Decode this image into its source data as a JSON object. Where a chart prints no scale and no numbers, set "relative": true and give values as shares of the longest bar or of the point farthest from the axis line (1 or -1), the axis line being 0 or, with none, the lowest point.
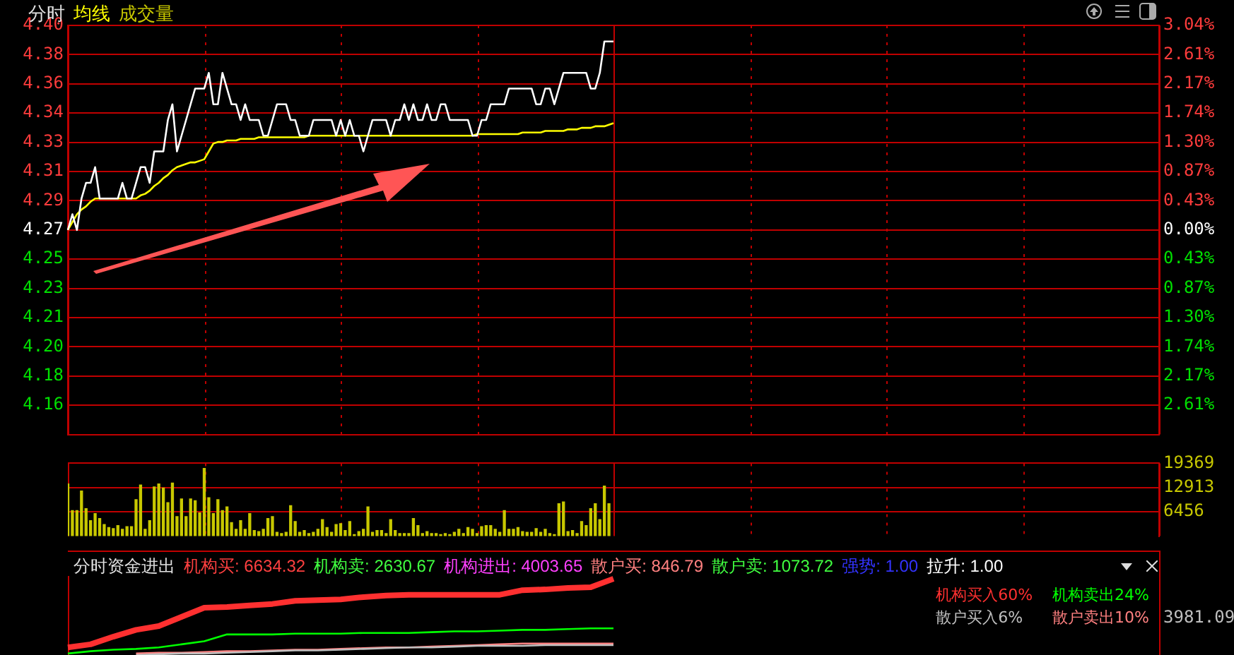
{
  "chart_data": [
    {
      "type": "line",
      "title": "分时",
      "marker": "none",
      "grid": true,
      "categories": [
        null,
        null,
        null,
        null,
        null,
        null,
        null,
        null,
        null,
        null,
        null,
        null,
        null,
        null,
        null,
        null,
        null,
        null,
        null,
        null,
        null,
        null,
        null,
        null,
        null,
        null,
        null,
        null,
        null,
        null,
        null,
        null,
        null,
        null,
        null,
        null,
        null,
        null,
        null,
        null,
        null,
        null,
        null,
        null,
        null,
        null,
        null,
        null,
        null,
        null,
        null,
        null,
        null,
        null,
        null,
        null,
        null,
        null,
        null,
        null,
        null,
        null,
        null,
        null,
        null,
        null,
        null,
        null,
        null,
        null,
        null,
        null,
        null,
        null,
        null,
        null,
        null,
        null,
        null,
        null,
        null,
        null,
        null,
        null,
        null,
        null,
        null,
        null,
        null,
        null,
        null,
        null,
        null,
        null,
        null,
        null,
        null,
        null,
        null,
        null,
        null,
        null,
        null,
        null,
        null,
        null,
        null,
        null,
        null,
        null,
        null,
        null,
        null,
        null,
        null,
        null,
        null,
        null,
        null,
        null,
        null,
        null,
        null,
        null,
        null,
        null,
        null,
        null,
        null,
        null,
        null,
        null,
        null,
        null,
        null,
        null,
        null,
        null,
        null,
        null,
        null,
        null,
        null,
        null,
        null,
        null,
        null,
        null,
        null,
        null,
        null,
        null,
        null,
        null,
        null,
        null,
        null,
        null,
        null,
        null,
        null,
        null,
        null,
        null,
        null,
        null,
        null,
        null,
        null,
        null,
        null,
        null,
        null,
        null,
        null,
        null,
        null,
        null,
        null,
        null,
        null,
        null,
        null,
        null,
        null,
        null,
        null,
        null,
        null,
        null,
        null,
        null,
        null,
        null,
        null,
        null,
        null,
        null,
        null,
        null,
        null,
        null,
        null,
        null,
        null,
        null,
        null,
        null,
        null,
        null,
        null,
        null,
        null,
        null,
        null,
        null,
        null,
        null,
        null,
        null,
        null,
        null,
        null,
        null,
        null,
        null,
        null,
        null,
        null,
        null,
        null,
        null,
        null,
        null,
        null,
        null,
        null,
        null,
        null,
        null,
        null
      ],
      "ylim": [
        4.1398,
        4.4002
      ],
      "yticks": [
        {
          "value": 4.1398,
          "label": null
        },
        {
          "value": 4.1584,
          "label": "4.16"
        },
        {
          "value": 4.177,
          "label": "4.18"
        },
        {
          "value": 4.1956,
          "label": "4.20"
        },
        {
          "value": 4.2142,
          "label": "4.21"
        },
        {
          "value": 4.2328,
          "label": "4.23"
        },
        {
          "value": 4.2514,
          "label": "4.25"
        },
        {
          "value": 4.27,
          "label": "4.27"
        },
        {
          "value": 4.2886,
          "label": "4.29"
        },
        {
          "value": 4.3072,
          "label": "4.31"
        },
        {
          "value": 4.3258,
          "label": "4.33"
        },
        {
          "value": 4.3444,
          "label": "4.34"
        },
        {
          "value": 4.363,
          "label": "4.36"
        },
        {
          "value": 4.3816,
          "label": "4.38"
        },
        {
          "value": 4.4002,
          "label": "4.40"
        }
      ],
      "y2lim": [
        -3.0435,
        3.0435
      ],
      "y2ticks": [
        {
          "value": -2.6087,
          "label": "2.61%"
        },
        {
          "value": -2.1739,
          "label": "2.17%"
        },
        {
          "value": -1.7391,
          "label": "1.74%"
        },
        {
          "value": -1.3043,
          "label": "1.30%"
        },
        {
          "value": -0.8696,
          "label": "0.87%"
        },
        {
          "value": -0.4348,
          "label": "0.43%"
        },
        {
          "value": 0,
          "label": "0.00%"
        },
        {
          "value": 0.4348,
          "label": "0.43%"
        },
        {
          "value": 0.8696,
          "label": "0.87%"
        },
        {
          "value": 1.3043,
          "label": "1.30%"
        },
        {
          "value": 1.7391,
          "label": "1.74%"
        },
        {
          "value": 2.1739,
          "label": "2.17%"
        },
        {
          "value": 2.6087,
          "label": "2.61%"
        },
        {
          "value": 3.0435,
          "label": "3.04%"
        }
      ],
      "series": [
        {
          "color": "#ffffff",
          "values": [
            4.27,
            4.28,
            4.27,
            4.29,
            4.3,
            4.3,
            4.31,
            4.29,
            4.29,
            4.29,
            4.29,
            4.29,
            4.3,
            4.29,
            4.29,
            4.3,
            4.31,
            4.31,
            4.3,
            4.32,
            4.32,
            4.32,
            4.34,
            4.35,
            4.32,
            4.33,
            4.34,
            4.35,
            4.36,
            4.36,
            4.36,
            4.37,
            4.35,
            4.35,
            4.37,
            4.36,
            4.35,
            4.35,
            4.34,
            4.35,
            4.34,
            4.34,
            4.34,
            4.33,
            4.33,
            4.34,
            4.35,
            4.35,
            4.35,
            4.34,
            4.34,
            4.33,
            4.33,
            4.33,
            4.34,
            4.34,
            4.34,
            4.34,
            4.34,
            4.33,
            4.34,
            4.33,
            4.34,
            4.33,
            4.33,
            4.32,
            4.33,
            4.34,
            4.34,
            4.34,
            4.34,
            4.33,
            4.34,
            4.34,
            4.35,
            4.34,
            4.35,
            4.34,
            4.34,
            4.35,
            4.34,
            4.34,
            4.35,
            4.35,
            4.34,
            4.34,
            4.34,
            4.34,
            4.34,
            4.33,
            4.33,
            4.34,
            4.34,
            4.35,
            4.35,
            4.35,
            4.35,
            4.36,
            4.36,
            4.36,
            4.36,
            4.36,
            4.36,
            4.35,
            4.35,
            4.36,
            4.36,
            4.35,
            4.36,
            4.37,
            4.37,
            4.37,
            4.37,
            4.37,
            4.37,
            4.36,
            4.36,
            4.37,
            4.39,
            4.39,
            4.39,
            null,
            null,
            null,
            null,
            null,
            null,
            null,
            null,
            null,
            null,
            null,
            null,
            null,
            null,
            null,
            null,
            null,
            null,
            null,
            null,
            null,
            null,
            null,
            null,
            null,
            null,
            null,
            null,
            null,
            null,
            null,
            null,
            null,
            null,
            null,
            null,
            null,
            null,
            null,
            null,
            null,
            null,
            null,
            null,
            null,
            null,
            null,
            null,
            null,
            null,
            null,
            null,
            null,
            null,
            null,
            null,
            null,
            null,
            null,
            null,
            null,
            null,
            null,
            null,
            null,
            null,
            null,
            null,
            null,
            null,
            null,
            null,
            null,
            null,
            null,
            null,
            null,
            null,
            null,
            null,
            null,
            null,
            null,
            null,
            null,
            null,
            null,
            null,
            null,
            null,
            null,
            null,
            null,
            null,
            null,
            null,
            null,
            null,
            null,
            null,
            null,
            null,
            null,
            null,
            null,
            null,
            null,
            null,
            null,
            null,
            null,
            null,
            null,
            null,
            null,
            null,
            null,
            null,
            null,
            null
          ]
        },
        {
          "name": "均线",
          "color": "#ffff00",
          "values": [
            4.27,
            4.275,
            4.28,
            4.283,
            4.285,
            4.288,
            4.29,
            4.29,
            4.29,
            4.29,
            4.29,
            4.29,
            4.29,
            4.29,
            4.29,
            4.29,
            4.292,
            4.293,
            4.295,
            4.298,
            4.3,
            4.303,
            4.305,
            4.308,
            4.31,
            4.311,
            4.312,
            4.313,
            4.313,
            4.314,
            4.315,
            4.32,
            4.325,
            4.326,
            4.326,
            4.327,
            4.327,
            4.327,
            4.328,
            4.328,
            4.328,
            4.328,
            4.329,
            4.329,
            4.329,
            4.329,
            4.329,
            4.329,
            4.329,
            4.329,
            4.329,
            4.329,
            4.329,
            4.33,
            4.33,
            4.33,
            4.33,
            4.33,
            4.33,
            4.33,
            4.33,
            4.33,
            4.33,
            4.33,
            4.33,
            4.33,
            4.33,
            4.33,
            4.33,
            4.33,
            4.33,
            4.33,
            4.33,
            4.33,
            4.33,
            4.33,
            4.33,
            4.33,
            4.33,
            4.33,
            4.33,
            4.33,
            4.33,
            4.33,
            4.33,
            4.33,
            4.33,
            4.33,
            4.33,
            4.33,
            4.331,
            4.331,
            4.331,
            4.331,
            4.331,
            4.331,
            4.331,
            4.331,
            4.331,
            4.331,
            4.332,
            4.332,
            4.332,
            4.332,
            4.332,
            4.333,
            4.333,
            4.333,
            4.333,
            4.333,
            4.334,
            4.334,
            4.334,
            4.335,
            4.335,
            4.335,
            4.336,
            4.336,
            4.336,
            4.337,
            4.338,
            null,
            null,
            null,
            null,
            null,
            null,
            null,
            null,
            null,
            null,
            null,
            null,
            null,
            null,
            null,
            null,
            null,
            null,
            null,
            null,
            null,
            null,
            null,
            null,
            null,
            null,
            null,
            null,
            null,
            null,
            null,
            null,
            null,
            null,
            null,
            null,
            null,
            null,
            null,
            null,
            null,
            null,
            null,
            null,
            null,
            null,
            null,
            null,
            null,
            null,
            null,
            null,
            null,
            null,
            null,
            null,
            null,
            null,
            null,
            null,
            null,
            null,
            null,
            null,
            null,
            null,
            null,
            null,
            null,
            null,
            null,
            null,
            null,
            null,
            null,
            null,
            null,
            null,
            null,
            null,
            null,
            null,
            null,
            null,
            null,
            null,
            null,
            null,
            null,
            null,
            null,
            null,
            null,
            null,
            null,
            null,
            null,
            null,
            null,
            null,
            null,
            null,
            null,
            null,
            null,
            null,
            null,
            null,
            null,
            null,
            null,
            null,
            null,
            null,
            null,
            null,
            null,
            null,
            null,
            null
          ]
        }
      ]
    },
    {
      "type": "bar",
      "grid": true,
      "categories": [
        null,
        null,
        null,
        null,
        null,
        null,
        null,
        null,
        null,
        null,
        null,
        null,
        null,
        null,
        null,
        null,
        null,
        null,
        null,
        null,
        null,
        null,
        null,
        null,
        null,
        null,
        null,
        null,
        null,
        null,
        null,
        null,
        null,
        null,
        null,
        null,
        null,
        null,
        null,
        null,
        null,
        null,
        null,
        null,
        null,
        null,
        null,
        null,
        null,
        null,
        null,
        null,
        null,
        null,
        null,
        null,
        null,
        null,
        null,
        null,
        null,
        null,
        null,
        null,
        null,
        null,
        null,
        null,
        null,
        null,
        null,
        null,
        null,
        null,
        null,
        null,
        null,
        null,
        null,
        null,
        null,
        null,
        null,
        null,
        null,
        null,
        null,
        null,
        null,
        null,
        null,
        null,
        null,
        null,
        null,
        null,
        null,
        null,
        null,
        null,
        null,
        null,
        null,
        null,
        null,
        null,
        null,
        null,
        null,
        null,
        null,
        null,
        null,
        null,
        null,
        null,
        null,
        null,
        null,
        null,
        null,
        null,
        null,
        null,
        null,
        null,
        null,
        null,
        null,
        null,
        null,
        null,
        null,
        null,
        null,
        null,
        null,
        null,
        null,
        null,
        null,
        null,
        null,
        null,
        null,
        null,
        null,
        null,
        null,
        null,
        null,
        null,
        null,
        null,
        null,
        null,
        null,
        null,
        null,
        null,
        null,
        null,
        null,
        null,
        null,
        null,
        null,
        null,
        null,
        null,
        null,
        null,
        null,
        null,
        null,
        null,
        null,
        null,
        null,
        null,
        null,
        null,
        null,
        null,
        null,
        null,
        null,
        null,
        null,
        null,
        null,
        null,
        null,
        null,
        null,
        null,
        null,
        null,
        null,
        null,
        null,
        null,
        null,
        null,
        null,
        null,
        null,
        null,
        null,
        null,
        null,
        null,
        null,
        null,
        null,
        null,
        null,
        null,
        null,
        null,
        null,
        null,
        null,
        null,
        null,
        null,
        null,
        null,
        null,
        null,
        null,
        null,
        null,
        null,
        null,
        null,
        null,
        null,
        null,
        null,
        null
      ],
      "ylim": [
        0,
        19369
      ],
      "yticks": [
        6456,
        12913,
        19369
      ],
      "series": [
        {
          "name": "成交量",
          "color": "#c8c800",
          "values": [
            13900,
            6800,
            6800,
            12000,
            7300,
            4100,
            6000,
            4700,
            3100,
            2300,
            2000,
            2800,
            1800,
            2500,
            2500,
            9700,
            13600,
            1800,
            4100,
            13100,
            13900,
            12800,
            8900,
            14100,
            5200,
            9900,
            5200,
            9900,
            9400,
            6200,
            18000,
            10200,
            6000,
            9700,
            6800,
            7800,
            3600,
            1800,
            4100,
            1800,
            6000,
            1500,
            1200,
            1800,
            4700,
            5200,
            1000,
            700,
            1000,
            8100,
            3900,
            1000,
            1500,
            700,
            1000,
            1800,
            4400,
            2300,
            1000,
            3100,
            3300,
            1500,
            3900,
            400,
            1200,
            1800,
            7800,
            1000,
            1500,
            1500,
            700,
            4400,
            1500,
            700,
            700,
            700,
            4700,
            2800,
            700,
            1200,
            700,
            700,
            400,
            700,
            400,
            1000,
            1800,
            700,
            2300,
            1800,
            700,
            2500,
            2800,
            2800,
            1800,
            1000,
            6800,
            1800,
            1800,
            2300,
            1200,
            1000,
            1000,
            2000,
            1000,
            1800,
            700,
            400,
            8600,
            9100,
            1200,
            1500,
            700,
            3900,
            2800,
            7300,
            8600,
            4400,
            13300,
            8600,
            null,
            null,
            null,
            null,
            null,
            null,
            null,
            null,
            null,
            null,
            null,
            null,
            null,
            null,
            null,
            null,
            null,
            null,
            null,
            null,
            null,
            null,
            null,
            null,
            null,
            null,
            null,
            null,
            null,
            null,
            null,
            null,
            null,
            null,
            null,
            null,
            null,
            null,
            null,
            null,
            null,
            null,
            null,
            null,
            null,
            null,
            null,
            null,
            null,
            null,
            null,
            null,
            null,
            null,
            null,
            null,
            null,
            null,
            null,
            null,
            null,
            null,
            null,
            null,
            null,
            null,
            null,
            null,
            null,
            null,
            null,
            null,
            null,
            null,
            null,
            null,
            null,
            null,
            null,
            null,
            null,
            null,
            null,
            null,
            null,
            null,
            null,
            null,
            null,
            null,
            null,
            null,
            null,
            null,
            null,
            null,
            null,
            null,
            null,
            null,
            null,
            null,
            null,
            null,
            null,
            null,
            null,
            null,
            null,
            null,
            null,
            null,
            null,
            null,
            null,
            null,
            null,
            null,
            null,
            null,
            null
          ]
        }
      ]
    },
    {
      "type": "line",
      "relative": true,
      "marker": "none",
      "categories": [
        null,
        null,
        null,
        null,
        null,
        null,
        null,
        null,
        null,
        null,
        null,
        null,
        null,
        null,
        null,
        null,
        null,
        null,
        null,
        null,
        null,
        null,
        null,
        null,
        null,
        null,
        null,
        null,
        null,
        null,
        null,
        null,
        null,
        null,
        null,
        null,
        null,
        null,
        null,
        null,
        null,
        null,
        null,
        null,
        null,
        null,
        null,
        null,
        null
      ],
      "annotations": [
        "分时资金进出",
        "机构买: 6634.32",
        "机构卖: 2630.67",
        "机构进出: 4003.65",
        "散户买: 846.79",
        "散户卖: 1073.72",
        "强势: 1.00",
        "拉升: 1.00",
        "3981.09"
      ],
      "series": [
        {
          "name": "机构买入60%",
          "color": "#ff3030",
          "values": [
            0.1,
            0.14,
            0.24,
            0.33,
            0.38,
            0.5,
            0.62,
            0.63,
            0.65,
            0.67,
            0.71,
            0.72,
            0.73,
            0.76,
            0.78,
            0.79,
            0.79,
            0.79,
            0.79,
            0.79,
            0.85,
            0.86,
            0.88,
            0.89,
            1,
            null,
            null,
            null,
            null,
            null,
            null,
            null,
            null,
            null,
            null,
            null,
            null,
            null,
            null,
            null,
            null,
            null,
            null,
            null,
            null,
            null,
            null,
            null,
            null
          ]
        },
        {
          "name": "机构卖出24%",
          "color": "#00ff00",
          "values": [
            0.02,
            0.05,
            0.07,
            0.08,
            0.1,
            0.14,
            0.18,
            0.27,
            0.27,
            0.27,
            0.28,
            0.28,
            0.28,
            0.29,
            0.29,
            0.29,
            0.3,
            0.31,
            0.31,
            0.32,
            0.33,
            0.33,
            0.34,
            0.35,
            0.35,
            null,
            null,
            null,
            null,
            null,
            null,
            null,
            null,
            null,
            null,
            null,
            null,
            null,
            null,
            null,
            null,
            null,
            null,
            null,
            null,
            null,
            null,
            null,
            null
          ]
        },
        {
          "name": "散户买入6%",
          "color": "#c0c0c0",
          "values": [
            null,
            null,
            null,
            0,
            0.01,
            0.02,
            0.02,
            0.03,
            0.04,
            0.05,
            0.06,
            0.06,
            0.07,
            0.08,
            0.09,
            0.1,
            0.1,
            0.11,
            0.12,
            0.12,
            0.12,
            0.13,
            0.13,
            0.13,
            0.13,
            null,
            null,
            null,
            null,
            null,
            null,
            null,
            null,
            null,
            null,
            null,
            null,
            null,
            null,
            null,
            null,
            null,
            null,
            null,
            null,
            null,
            null,
            null,
            null
          ]
        },
        {
          "name": "散户卖出10%",
          "color": "#ff8080",
          "values": [
            null,
            null,
            null,
            0.02,
            0.03,
            0.03,
            0.04,
            0.05,
            0.05,
            0.06,
            0.07,
            0.07,
            0.08,
            0.09,
            0.1,
            0.1,
            0.11,
            0.12,
            0.13,
            0.14,
            0.15,
            0.15,
            0.15,
            0.15,
            0.15,
            null,
            null,
            null,
            null,
            null,
            null,
            null,
            null,
            null,
            null,
            null,
            null,
            null,
            null,
            null,
            null,
            null,
            null,
            null,
            null,
            null,
            null,
            null,
            null
          ]
        }
      ]
    }
  ]
}
